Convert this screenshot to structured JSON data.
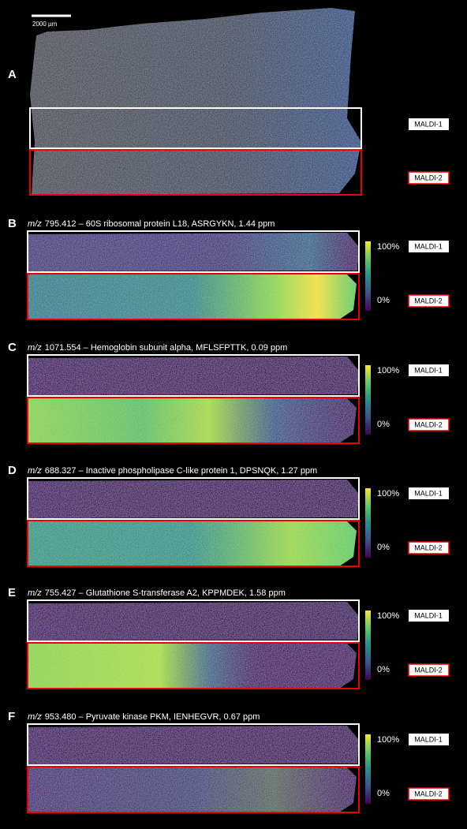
{
  "scale_bar": "2000 µm",
  "panels": [
    {
      "label": "A",
      "regions": [
        "MALDI-1",
        "MALDI-2"
      ]
    },
    {
      "label": "B",
      "title_prefix": "m/z",
      "title": "795.412 – 60S ribosomal protein L18, ASRGYKN, 1.44 ppm",
      "colorbar": [
        "100%",
        "0%"
      ],
      "regions": [
        "MALDI-1",
        "MALDI-2"
      ]
    },
    {
      "label": "C",
      "title_prefix": "m/z",
      "title": "1071.554 – Hemoglobin subunit alpha, MFLSFPTTK, 0.09 ppm",
      "colorbar": [
        "100%",
        "0%"
      ],
      "regions": [
        "MALDI-1",
        "MALDI-2"
      ]
    },
    {
      "label": "D",
      "title_prefix": "m/z",
      "title": "688.327 – Inactive phospholipase C-like protein 1, DPSNQK, 1.27 ppm",
      "colorbar": [
        "100%",
        "0%"
      ],
      "regions": [
        "MALDI-1",
        "MALDI-2"
      ]
    },
    {
      "label": "E",
      "title_prefix": "m/z",
      "title": "755.427 – Glutathione S-transferase A2, KPPMDEK, 1.58 ppm",
      "colorbar": [
        "100%",
        "0%"
      ],
      "regions": [
        "MALDI-1",
        "MALDI-2"
      ]
    },
    {
      "label": "F",
      "title_prefix": "m/z",
      "title": "953.480 – Pyruvate kinase PKM, IENHEGVR, 0.67 ppm",
      "colorbar": [
        "100%",
        "0%"
      ],
      "regions": [
        "MALDI-1",
        "MALDI-2"
      ]
    }
  ]
}
